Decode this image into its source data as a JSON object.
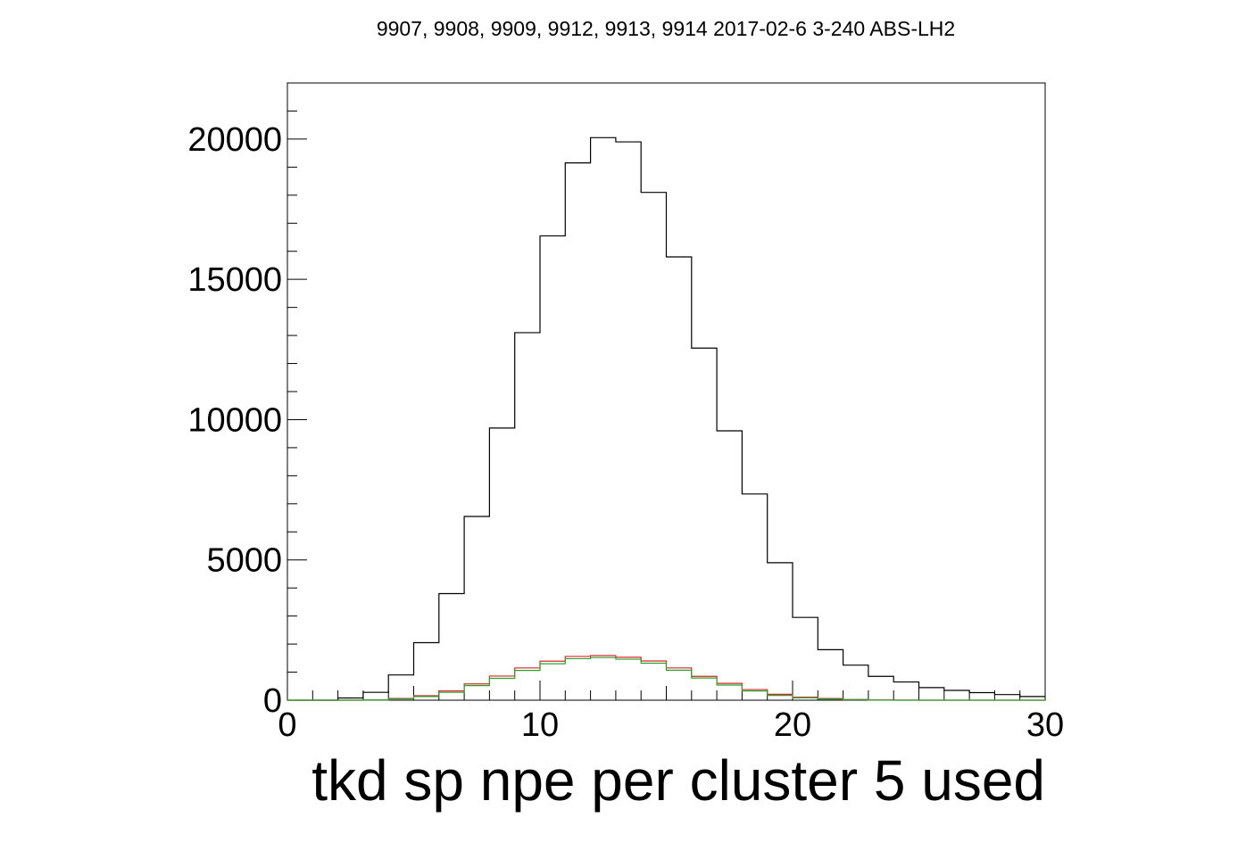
{
  "chart_data": {
    "type": "histogram",
    "title": "9907, 9908, 9909, 9912, 9913, 9914 2017-02-6 3-240 ABS-LH2",
    "xlabel": "tkd sp npe per cluster 5 used",
    "ylabel": "",
    "xlim": [
      0,
      30
    ],
    "ylim": [
      0,
      22000
    ],
    "grid": false,
    "legend": "none",
    "x_ticks": [
      {
        "value": 0,
        "label": "0"
      },
      {
        "value": 10,
        "label": "10"
      },
      {
        "value": 20,
        "label": "20"
      },
      {
        "value": 30,
        "label": "30"
      }
    ],
    "y_ticks": [
      {
        "value": 0,
        "label": "0"
      },
      {
        "value": 5000,
        "label": "5000"
      },
      {
        "value": 10000,
        "label": "10000"
      },
      {
        "value": 15000,
        "label": "15000"
      },
      {
        "value": 20000,
        "label": "20000"
      }
    ],
    "bin_edges": [
      0,
      1,
      2,
      3,
      4,
      5,
      6,
      7,
      8,
      9,
      10,
      11,
      12,
      13,
      14,
      15,
      16,
      17,
      18,
      19,
      20,
      21,
      22,
      23,
      24,
      25,
      26,
      27,
      28,
      29,
      30
    ],
    "series": [
      {
        "color": "#000000",
        "values": [
          0,
          0,
          80,
          280,
          900,
          2050,
          3800,
          6550,
          9700,
          13100,
          16550,
          19150,
          20050,
          19900,
          18100,
          15800,
          12550,
          9600,
          7350,
          4900,
          2950,
          1800,
          1250,
          850,
          650,
          450,
          350,
          270,
          200,
          130
        ]
      },
      {
        "color": "#d62728",
        "values": [
          0,
          0,
          0,
          10,
          60,
          160,
          330,
          580,
          860,
          1150,
          1390,
          1560,
          1590,
          1530,
          1400,
          1150,
          850,
          600,
          380,
          210,
          110,
          60,
          25,
          10,
          5,
          0,
          0,
          0,
          0,
          0
        ]
      },
      {
        "color": "#2ca02c",
        "values": [
          0,
          0,
          0,
          8,
          45,
          130,
          280,
          520,
          780,
          1060,
          1300,
          1480,
          1520,
          1460,
          1320,
          1070,
          790,
          540,
          330,
          170,
          85,
          40,
          15,
          5,
          0,
          0,
          0,
          0,
          0,
          0
        ]
      }
    ]
  }
}
